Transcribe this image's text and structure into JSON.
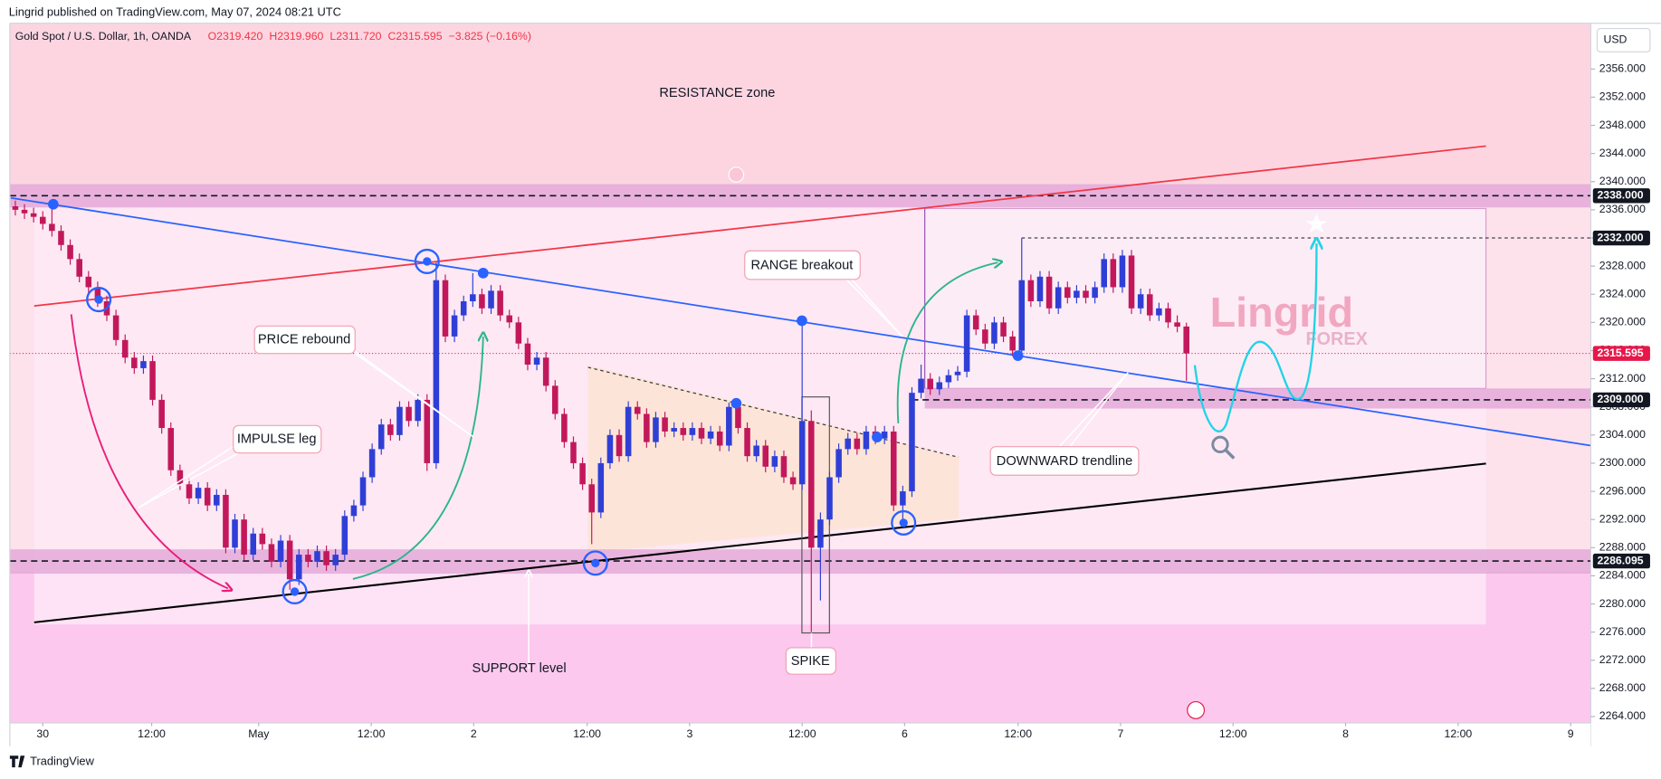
{
  "header": {
    "publisher": "Lingrid published on TradingView.com, May 07, 2024 08:21 UTC"
  },
  "chart_data": {
    "type": "candlestick",
    "symbol": "Gold Spot / U.S. Dollar, 1h, OANDA",
    "ohlc_text": [
      "O2319.420",
      "H2319.960",
      "L2311.720",
      "C2315.595",
      "−3.825 (−0.16%)"
    ],
    "currency": "USD",
    "up_color": "#2f3fd6",
    "down_color": "#c2185b",
    "grid": false,
    "xlim": [
      -0.6,
      172.2
    ],
    "ylim": [
      2263.1,
      2362.5
    ],
    "xticks": [
      {
        "value": 3,
        "label": "30"
      },
      {
        "value": 14.9,
        "label": "12:00"
      },
      {
        "value": 26.6,
        "label": "May"
      },
      {
        "value": 38.9,
        "label": "12:00"
      },
      {
        "value": 50.1,
        "label": "2"
      },
      {
        "value": 62.5,
        "label": "12:00"
      },
      {
        "value": 73.7,
        "label": "3"
      },
      {
        "value": 86,
        "label": "12:00"
      },
      {
        "value": 97.2,
        "label": "6"
      },
      {
        "value": 109.6,
        "label": "12:00"
      },
      {
        "value": 120.8,
        "label": "7"
      },
      {
        "value": 133.1,
        "label": "12:00"
      },
      {
        "value": 145.4,
        "label": "8"
      },
      {
        "value": 157.7,
        "label": "12:00"
      },
      {
        "value": 170,
        "label": "9"
      }
    ],
    "yticks": [
      {
        "value": 2264,
        "label": "2264.000"
      },
      {
        "value": 2268,
        "label": "2268.000"
      },
      {
        "value": 2272,
        "label": "2272.000"
      },
      {
        "value": 2276,
        "label": "2276.000"
      },
      {
        "value": 2280,
        "label": "2280.000"
      },
      {
        "value": 2284,
        "label": "2284.000"
      },
      {
        "value": 2288,
        "label": "2288.000"
      },
      {
        "value": 2292,
        "label": "2292.000"
      },
      {
        "value": 2296,
        "label": "2296.000"
      },
      {
        "value": 2300,
        "label": "2300.000"
      },
      {
        "value": 2304,
        "label": "2304.000"
      },
      {
        "value": 2308,
        "label": "2308.000"
      },
      {
        "value": 2312,
        "label": "2312.000"
      },
      {
        "value": 2316,
        "label": "2316.000"
      },
      {
        "value": 2320,
        "label": "2320.000"
      },
      {
        "value": 2324,
        "label": "2324.000"
      },
      {
        "value": 2328,
        "label": "2328.000"
      },
      {
        "value": 2332,
        "label": "2332.000"
      },
      {
        "value": 2336,
        "label": "2336.000"
      },
      {
        "value": 2340,
        "label": "2340.000"
      },
      {
        "value": 2344,
        "label": "2344.000"
      },
      {
        "value": 2348,
        "label": "2348.000"
      },
      {
        "value": 2352,
        "label": "2352.000"
      },
      {
        "value": 2356,
        "label": "2356.000"
      }
    ],
    "price_labels": [
      {
        "value": 2338,
        "label": "2338.000",
        "color": "#131722"
      },
      {
        "value": 2332,
        "label": "2332.000",
        "color": "#131722"
      },
      {
        "value": 2315.595,
        "label": "2315.595",
        "color": "#e8174a"
      },
      {
        "value": 2309,
        "label": "2309.000",
        "color": "#131722"
      },
      {
        "value": 2286.095,
        "label": "2286.095",
        "color": "#131722"
      }
    ],
    "annotations": {
      "resistance": "RESISTANCE zone",
      "support": "SUPPORT level",
      "price_rebound": "PRICE rebound",
      "impulse": "IMPULSE leg",
      "range": "RANGE breakout",
      "downward": "DOWNWARD trendline",
      "spike": "SPIKE"
    },
    "watermark": [
      "Lingrid",
      "FOREX"
    ],
    "ohlc": [
      [
        2336.5,
        2337.3,
        2335.2,
        2336
      ],
      [
        2336,
        2336.8,
        2334.7,
        2335.5
      ],
      [
        2335.5,
        2336.3,
        2334.2,
        2335
      ],
      [
        2335,
        2335.8,
        2333.2,
        2334
      ],
      [
        2334,
        2336.6,
        2332.2,
        2333
      ],
      [
        2333,
        2333.8,
        2330.2,
        2331
      ],
      [
        2331,
        2331.8,
        2328.2,
        2329
      ],
      [
        2329,
        2329.8,
        2325.7,
        2326.5
      ],
      [
        2326.5,
        2327.3,
        2324.2,
        2325
      ],
      [
        2325,
        2325.8,
        2322.2,
        2323
      ],
      [
        2323,
        2323.8,
        2320.2,
        2321
      ],
      [
        2321,
        2321.8,
        2316.7,
        2317.5
      ],
      [
        2317.5,
        2318.3,
        2314.2,
        2315
      ],
      [
        2315,
        2315.8,
        2312.7,
        2313.5
      ],
      [
        2313.5,
        2315.3,
        2312.7,
        2314.5
      ],
      [
        2314.5,
        2315.3,
        2308.2,
        2309
      ],
      [
        2309,
        2309.8,
        2304.2,
        2305
      ],
      [
        2305,
        2305.8,
        2298.2,
        2299
      ],
      [
        2299,
        2299.8,
        2296.2,
        2297
      ],
      [
        2297,
        2297.8,
        2294.2,
        2295
      ],
      [
        2295,
        2297.3,
        2294.2,
        2296.5
      ],
      [
        2296.5,
        2297.3,
        2293.2,
        2294
      ],
      [
        2294,
        2296.3,
        2293.2,
        2295.5
      ],
      [
        2295.5,
        2296.3,
        2287.2,
        2288
      ],
      [
        2288,
        2292.8,
        2287.2,
        2292
      ],
      [
        2292,
        2292.8,
        2286.2,
        2287
      ],
      [
        2287,
        2290.8,
        2286.2,
        2290
      ],
      [
        2290,
        2290.8,
        2287.7,
        2288.5
      ],
      [
        2288.5,
        2289.3,
        2285.2,
        2286
      ],
      [
        2286,
        2289.8,
        2285.2,
        2289
      ],
      [
        2289,
        2289.8,
        2282,
        2283.5
      ],
      [
        2283.5,
        2287.8,
        2282.7,
        2287
      ],
      [
        2287,
        2287.8,
        2285.2,
        2286
      ],
      [
        2286,
        2288.3,
        2285.2,
        2287.5
      ],
      [
        2287.5,
        2288.3,
        2284.7,
        2285.5
      ],
      [
        2285.5,
        2287.8,
        2284.7,
        2287
      ],
      [
        2287,
        2293.3,
        2286.2,
        2292.5
      ],
      [
        2292.5,
        2294.8,
        2291.7,
        2294
      ],
      [
        2294,
        2298.8,
        2293.2,
        2298
      ],
      [
        2298,
        2302.8,
        2297.2,
        2302
      ],
      [
        2302,
        2306.3,
        2301.2,
        2305.5
      ],
      [
        2305.5,
        2306.3,
        2303.2,
        2304
      ],
      [
        2304,
        2308.8,
        2303.2,
        2308
      ],
      [
        2308,
        2308.8,
        2305.2,
        2306
      ],
      [
        2306,
        2309.8,
        2305.2,
        2309
      ],
      [
        2309,
        2309.8,
        2298.9,
        2300
      ],
      [
        2300,
        2328.5,
        2299.2,
        2326
      ],
      [
        2326,
        2326.8,
        2317.2,
        2318
      ],
      [
        2318,
        2321.8,
        2317.2,
        2321
      ],
      [
        2321,
        2323.8,
        2320.2,
        2323
      ],
      [
        2323,
        2327,
        2322.2,
        2324
      ],
      [
        2324,
        2324.8,
        2321.2,
        2322
      ],
      [
        2322,
        2325.3,
        2321.2,
        2324.5
      ],
      [
        2324.5,
        2325.3,
        2320.2,
        2321
      ],
      [
        2321,
        2321.8,
        2319.2,
        2320
      ],
      [
        2320,
        2320.8,
        2316.2,
        2317
      ],
      [
        2317,
        2317.8,
        2313.2,
        2314
      ],
      [
        2314,
        2315.8,
        2313.2,
        2315
      ],
      [
        2315,
        2315.8,
        2310.2,
        2311
      ],
      [
        2311,
        2311.8,
        2306.2,
        2307
      ],
      [
        2307,
        2307.8,
        2302.2,
        2303
      ],
      [
        2303,
        2303.8,
        2299.2,
        2300
      ],
      [
        2300,
        2300.8,
        2296.2,
        2297
      ],
      [
        2297,
        2297.8,
        2288.5,
        2293
      ],
      [
        2293,
        2300.8,
        2292.2,
        2300
      ],
      [
        2300,
        2304.8,
        2299.2,
        2304
      ],
      [
        2304,
        2304.8,
        2300.2,
        2301
      ],
      [
        2301,
        2308.8,
        2300.2,
        2308
      ],
      [
        2308,
        2308.8,
        2306.2,
        2307
      ],
      [
        2307,
        2307.8,
        2302.2,
        2303
      ],
      [
        2303,
        2307.3,
        2302.2,
        2306.5
      ],
      [
        2306.5,
        2307.3,
        2303.7,
        2304.5
      ],
      [
        2304.5,
        2305.8,
        2303.7,
        2305
      ],
      [
        2305,
        2305.8,
        2303.2,
        2304
      ],
      [
        2304,
        2305.8,
        2303.2,
        2305
      ],
      [
        2305,
        2305.8,
        2302.7,
        2303.5
      ],
      [
        2303.5,
        2305.3,
        2302.7,
        2304.5
      ],
      [
        2304.5,
        2305.3,
        2301.7,
        2302.5
      ],
      [
        2302.5,
        2308.6,
        2301.7,
        2308
      ],
      [
        2308,
        2308.8,
        2304.2,
        2305
      ],
      [
        2305,
        2305.8,
        2300.2,
        2301
      ],
      [
        2301,
        2303.3,
        2300.2,
        2302.5
      ],
      [
        2302.5,
        2303.3,
        2298.7,
        2299.5
      ],
      [
        2299.5,
        2301.8,
        2298.7,
        2301
      ],
      [
        2301,
        2301.8,
        2297.2,
        2298
      ],
      [
        2298,
        2298.8,
        2296.2,
        2297
      ],
      [
        2297,
        2320.2,
        2296.2,
        2306
      ],
      [
        2306,
        2307.5,
        2276,
        2288
      ],
      [
        2288,
        2293,
        2280.5,
        2292
      ],
      [
        2292,
        2298.8,
        2291.2,
        2298
      ],
      [
        2298,
        2302.8,
        2297.2,
        2302
      ],
      [
        2302,
        2304.3,
        2301.2,
        2303.5
      ],
      [
        2303.5,
        2304.3,
        2301.2,
        2302
      ],
      [
        2302,
        2305.3,
        2301.2,
        2304.5
      ],
      [
        2304.5,
        2305.3,
        2302.7,
        2303.5
      ],
      [
        2303.5,
        2305.3,
        2302.7,
        2304.5
      ],
      [
        2304.5,
        2305.3,
        2293.2,
        2294
      ],
      [
        2294,
        2296.8,
        2291.5,
        2296
      ],
      [
        2296,
        2310.8,
        2295.2,
        2310
      ],
      [
        2310,
        2314,
        2309.2,
        2312
      ],
      [
        2312,
        2312.8,
        2309.7,
        2310.5
      ],
      [
        2310.5,
        2312.3,
        2309.7,
        2311.5
      ],
      [
        2311.5,
        2313.3,
        2310.7,
        2312.5
      ],
      [
        2312.5,
        2313.8,
        2311.7,
        2313
      ],
      [
        2313,
        2321.8,
        2312.2,
        2321
      ],
      [
        2321,
        2321.8,
        2318.2,
        2319
      ],
      [
        2319,
        2319.8,
        2316.2,
        2317
      ],
      [
        2317,
        2320.8,
        2316.2,
        2320
      ],
      [
        2320,
        2320.8,
        2317.2,
        2318
      ],
      [
        2318,
        2318.8,
        2315.2,
        2316
      ],
      [
        2316,
        2332,
        2315.2,
        2326
      ],
      [
        2326,
        2326.8,
        2322.2,
        2323
      ],
      [
        2323,
        2327.3,
        2322.2,
        2326.5
      ],
      [
        2326.5,
        2327.3,
        2321.2,
        2322
      ],
      [
        2322,
        2325.8,
        2321.2,
        2325
      ],
      [
        2325,
        2325.8,
        2322.7,
        2323.5
      ],
      [
        2323.5,
        2325.3,
        2322.7,
        2324.5
      ],
      [
        2324.5,
        2325.3,
        2322.7,
        2323.5
      ],
      [
        2323.5,
        2325.8,
        2322.7,
        2325
      ],
      [
        2325,
        2329.8,
        2324.2,
        2329
      ],
      [
        2329,
        2329.8,
        2324.2,
        2325
      ],
      [
        2325,
        2330.3,
        2324.2,
        2329.5
      ],
      [
        2329.5,
        2330.3,
        2321.2,
        2322
      ],
      [
        2322,
        2324.8,
        2321.2,
        2324
      ],
      [
        2324,
        2324.8,
        2320.2,
        2321
      ],
      [
        2321,
        2322.8,
        2320.2,
        2322
      ],
      [
        2322,
        2322.8,
        2319.2,
        2320
      ],
      [
        2320,
        2321,
        2318.6,
        2319.4
      ],
      [
        2319.42,
        2319.96,
        2311.72,
        2315.595
      ]
    ]
  },
  "footer": "TradingView"
}
